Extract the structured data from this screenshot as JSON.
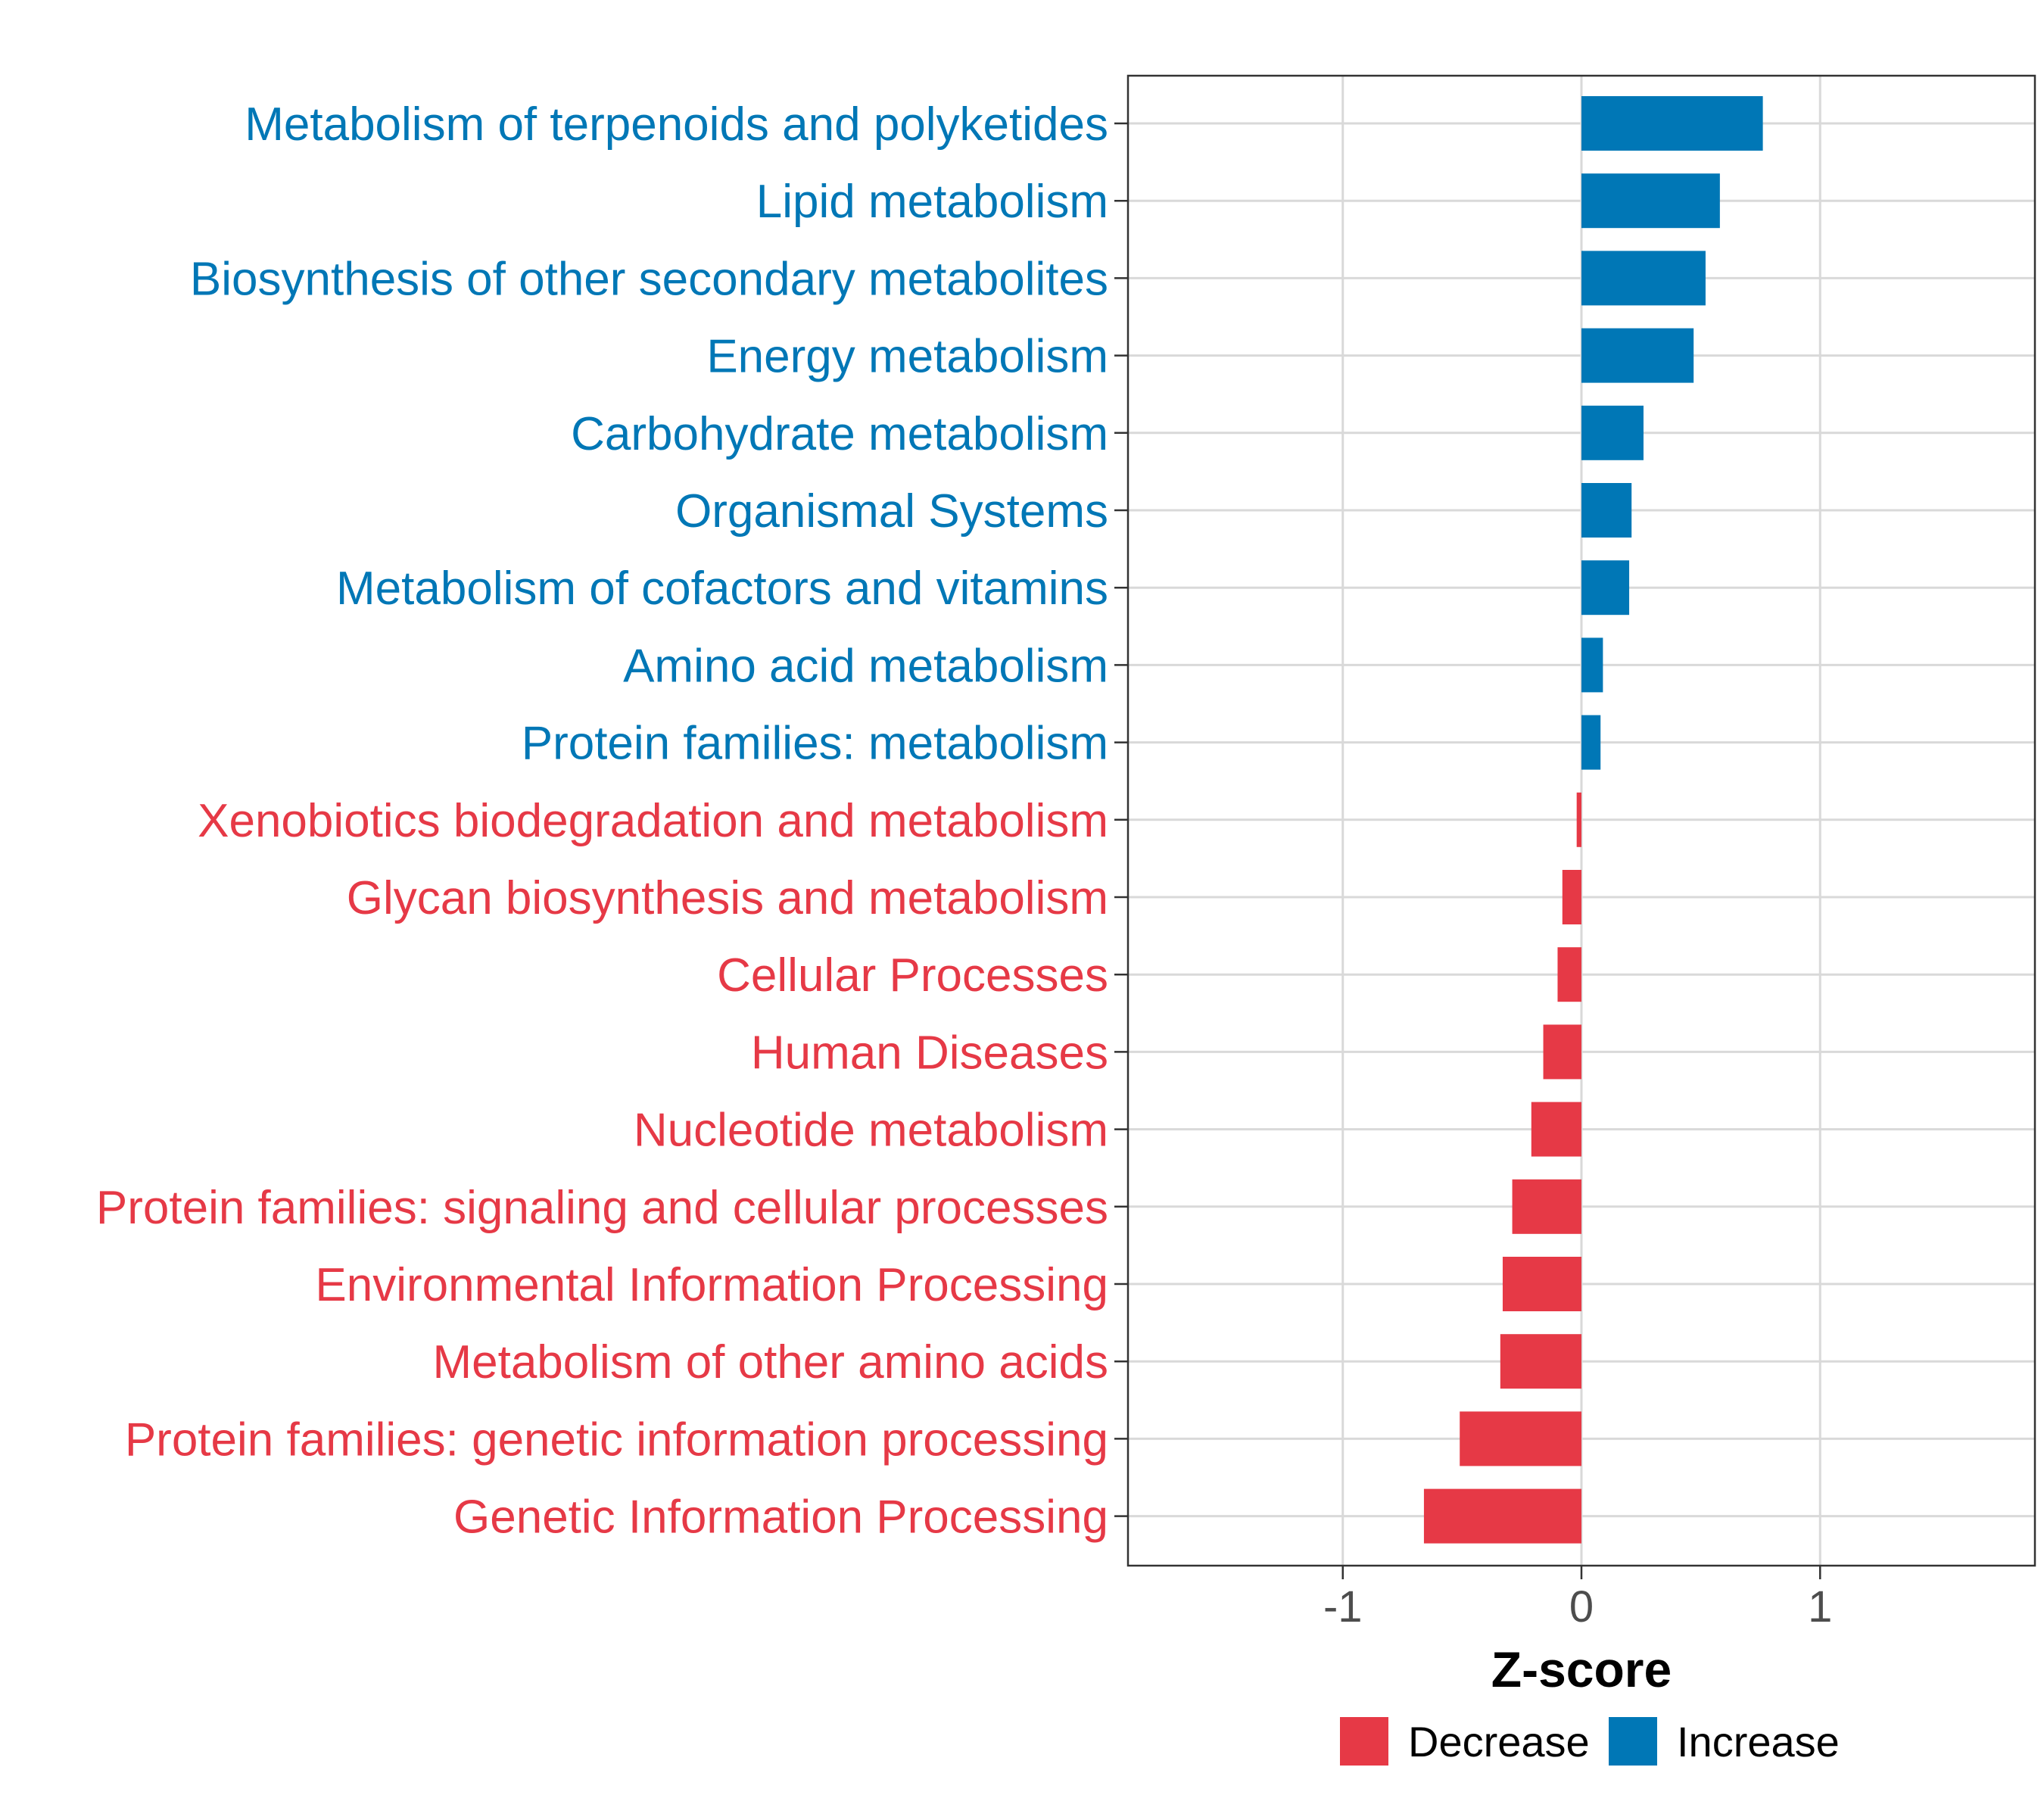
{
  "chart_data": {
    "type": "bar",
    "orientation": "horizontal",
    "xlabel": "Z-score",
    "ylabel": "",
    "xlim": [
      -1.9,
      1.9
    ],
    "xticks": [
      -1,
      0,
      1
    ],
    "xtick_labels": [
      "-1",
      "0",
      "1"
    ],
    "grid": true,
    "legend_position": "bottom",
    "legend": [
      {
        "label": "Decrease",
        "color": "#E63946"
      },
      {
        "label": "Increase",
        "color": "#0077B6"
      }
    ],
    "categories": [
      "Metabolism of terpenoids and polyketides",
      "Lipid metabolism",
      "Biosynthesis of other secondary metabolites",
      "Energy metabolism",
      "Carbohydrate metabolism",
      "Organismal Systems",
      "Metabolism of cofactors and vitamins",
      "Amino acid metabolism",
      "Protein families: metabolism",
      "Xenobiotics biodegradation and metabolism",
      "Glycan biosynthesis and metabolism",
      "Cellular Processes",
      "Human Diseases",
      "Nucleotide metabolism",
      "Protein families: signaling and cellular processes",
      "Environmental Information Processing",
      "Metabolism of other amino acids",
      "Protein families: genetic information processing",
      "Genetic Information Processing"
    ],
    "values": [
      0.76,
      0.58,
      0.52,
      0.47,
      0.26,
      0.21,
      0.2,
      0.09,
      0.08,
      -0.02,
      -0.08,
      -0.1,
      -0.16,
      -0.21,
      -0.29,
      -0.33,
      -0.34,
      -0.51,
      -0.66
    ],
    "groups": [
      "Increase",
      "Increase",
      "Increase",
      "Increase",
      "Increase",
      "Increase",
      "Increase",
      "Increase",
      "Increase",
      "Decrease",
      "Decrease",
      "Decrease",
      "Decrease",
      "Decrease",
      "Decrease",
      "Decrease",
      "Decrease",
      "Decrease",
      "Decrease"
    ]
  }
}
